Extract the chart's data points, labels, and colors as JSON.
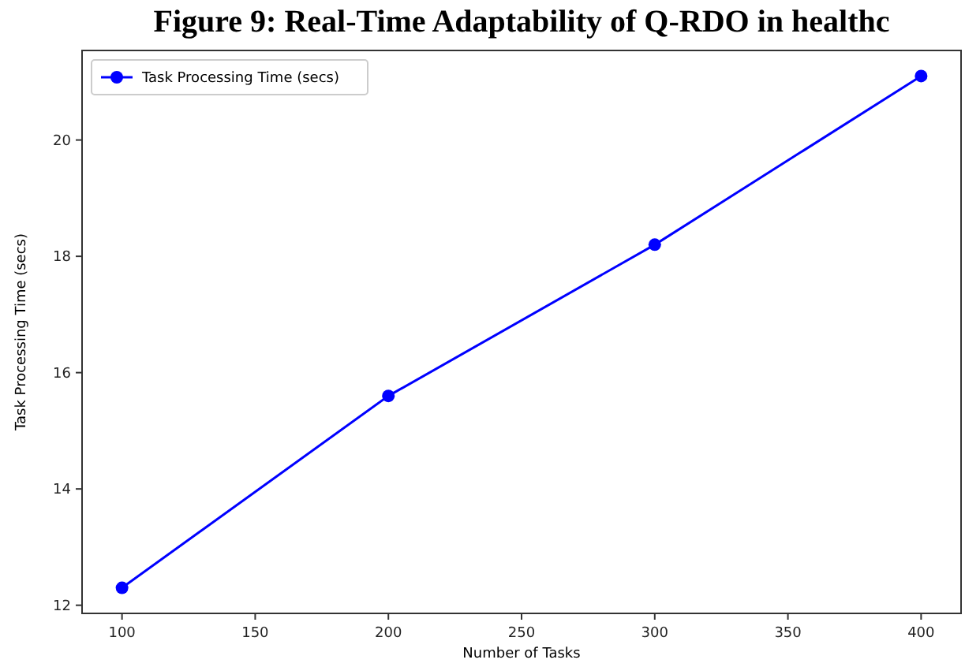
{
  "chart_data": {
    "type": "line",
    "title": "Figure 9: Real-Time Adaptability of Q-RDO in healthc",
    "xlabel": "Number of Tasks",
    "ylabel": "Task Processing Time (secs)",
    "x": [
      100,
      200,
      300,
      400
    ],
    "series": [
      {
        "name": "Task Processing Time (secs)",
        "color": "#0000ff",
        "values": [
          12.3,
          15.6,
          18.2,
          21.1
        ]
      }
    ],
    "xlim": [
      85,
      415
    ],
    "xticks": [
      100,
      150,
      200,
      250,
      300,
      350,
      400
    ],
    "ylim": [
      11.86,
      21.54
    ],
    "yticks": [
      12,
      14,
      16,
      18,
      20
    ],
    "grid": false,
    "legend": "top left",
    "marker": "circle",
    "line_style": "solid"
  }
}
